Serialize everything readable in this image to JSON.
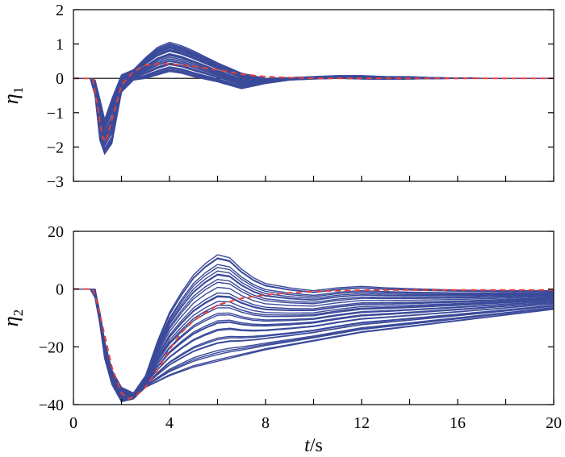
{
  "chart_data": [
    {
      "type": "line",
      "id": "eta1",
      "ylabel": "η",
      "ylabel_sub": "1",
      "xlim": [
        0,
        20
      ],
      "ylim": [
        -3,
        2
      ],
      "yticks": [
        2,
        1,
        0,
        -1,
        -2,
        -3
      ],
      "yticks_labels": [
        "2",
        "1",
        "0",
        "−1",
        "−2",
        "−3"
      ],
      "xticks": [
        0,
        2,
        4,
        6,
        8,
        10,
        12,
        14,
        16,
        18,
        20
      ],
      "zero_line": true,
      "envelope": {
        "color": "#3b4a9a",
        "x": [
          0,
          0.7,
          0.9,
          1.1,
          1.3,
          1.6,
          2.0,
          2.5,
          3.0,
          3.5,
          4.0,
          4.5,
          5.0,
          6.0,
          7.0,
          8.0,
          9.0,
          10.0,
          11.0,
          12.0,
          13.0,
          14.0,
          15.0,
          16.0,
          17.0,
          18.0,
          19.0,
          20.0
        ],
        "upper": [
          0,
          0.0,
          -0.05,
          -0.6,
          -1.2,
          -0.6,
          0.1,
          0.25,
          0.6,
          0.9,
          1.05,
          0.95,
          0.8,
          0.45,
          0.15,
          0.0,
          0.02,
          0.05,
          0.08,
          0.08,
          0.05,
          0.05,
          0.02,
          0.01,
          0.0,
          0.0,
          0.0,
          0.0
        ],
        "lower": [
          0,
          0.0,
          -0.5,
          -1.8,
          -2.2,
          -1.9,
          -0.4,
          -0.05,
          0.0,
          0.1,
          0.2,
          0.15,
          0.05,
          -0.1,
          -0.3,
          -0.15,
          -0.05,
          -0.02,
          0.0,
          -0.02,
          -0.03,
          -0.02,
          -0.01,
          0.0,
          0.0,
          0.0,
          0.0,
          0.0
        ]
      },
      "mean": {
        "color": "#e8403a",
        "x": [
          0,
          0.8,
          1.0,
          1.2,
          1.35,
          1.6,
          2.0,
          2.5,
          3.0,
          3.5,
          4.0,
          5.0,
          6.0,
          7.0,
          8.0,
          9.0,
          10.0,
          12.0,
          14.0,
          16.0,
          18.0,
          20.0
        ],
        "y": [
          0,
          0.0,
          -0.8,
          -1.7,
          -1.85,
          -1.2,
          -0.2,
          0.2,
          0.38,
          0.42,
          0.42,
          0.35,
          0.25,
          0.12,
          0.05,
          0.02,
          0.0,
          0.0,
          0.0,
          0.0,
          0.0,
          0.0
        ]
      }
    },
    {
      "type": "line",
      "id": "eta2",
      "ylabel": "η",
      "ylabel_sub": "2",
      "xlabel_italic": "t",
      "xlabel_rest": "/s",
      "xlim": [
        0,
        20
      ],
      "ylim": [
        -40,
        20
      ],
      "yticks": [
        20,
        0,
        -20,
        -40
      ],
      "yticks_labels": [
        "20",
        "0",
        "−20",
        "−40"
      ],
      "xticks": [
        0,
        2,
        4,
        6,
        8,
        10,
        12,
        14,
        16,
        18,
        20
      ],
      "xticks_labels_shown": [
        0,
        4,
        8,
        12,
        16,
        20
      ],
      "zero_line": false,
      "envelope": {
        "color": "#3b4a9a",
        "x": [
          0,
          0.7,
          0.9,
          1.1,
          1.3,
          1.6,
          2.0,
          2.5,
          3.0,
          3.5,
          4.0,
          4.5,
          5.0,
          5.5,
          6.0,
          6.5,
          7.0,
          7.5,
          8.0,
          9.0,
          10.0,
          11.0,
          12.0,
          13.0,
          14.0,
          16.0,
          18.0,
          20.0
        ],
        "upper": [
          0,
          0.0,
          0.0,
          -8,
          -18,
          -28,
          -34,
          -36,
          -30,
          -18,
          -8,
          -1,
          5,
          9,
          12,
          11,
          7,
          4,
          2,
          0.5,
          -0.5,
          0.5,
          1.0,
          0.5,
          0.2,
          -0.3,
          -0.5,
          -0.5
        ],
        "lower": [
          0,
          0.0,
          -3,
          -12,
          -24,
          -33,
          -39,
          -38,
          -34,
          -32,
          -30,
          -28.5,
          -27,
          -26,
          -25,
          -24,
          -23,
          -22,
          -21,
          -19.5,
          -18,
          -16.5,
          -15,
          -14,
          -13,
          -11,
          -9,
          -7
        ]
      },
      "mean": {
        "color": "#e8403a",
        "x": [
          0,
          0.8,
          1.0,
          1.3,
          1.6,
          2.0,
          2.3,
          2.6,
          3.0,
          3.5,
          4.0,
          4.5,
          5.0,
          6.0,
          7.0,
          8.0,
          9.0,
          10.0,
          12.0,
          14.0,
          16.0,
          18.0,
          20.0
        ],
        "y": [
          0,
          0.0,
          -5,
          -16,
          -27,
          -36,
          -38,
          -37,
          -34,
          -28,
          -21,
          -15,
          -11,
          -5.5,
          -3.2,
          -2.0,
          -1.3,
          -0.8,
          -0.4,
          -0.3,
          -0.3,
          -0.3,
          -0.3
        ]
      }
    }
  ]
}
